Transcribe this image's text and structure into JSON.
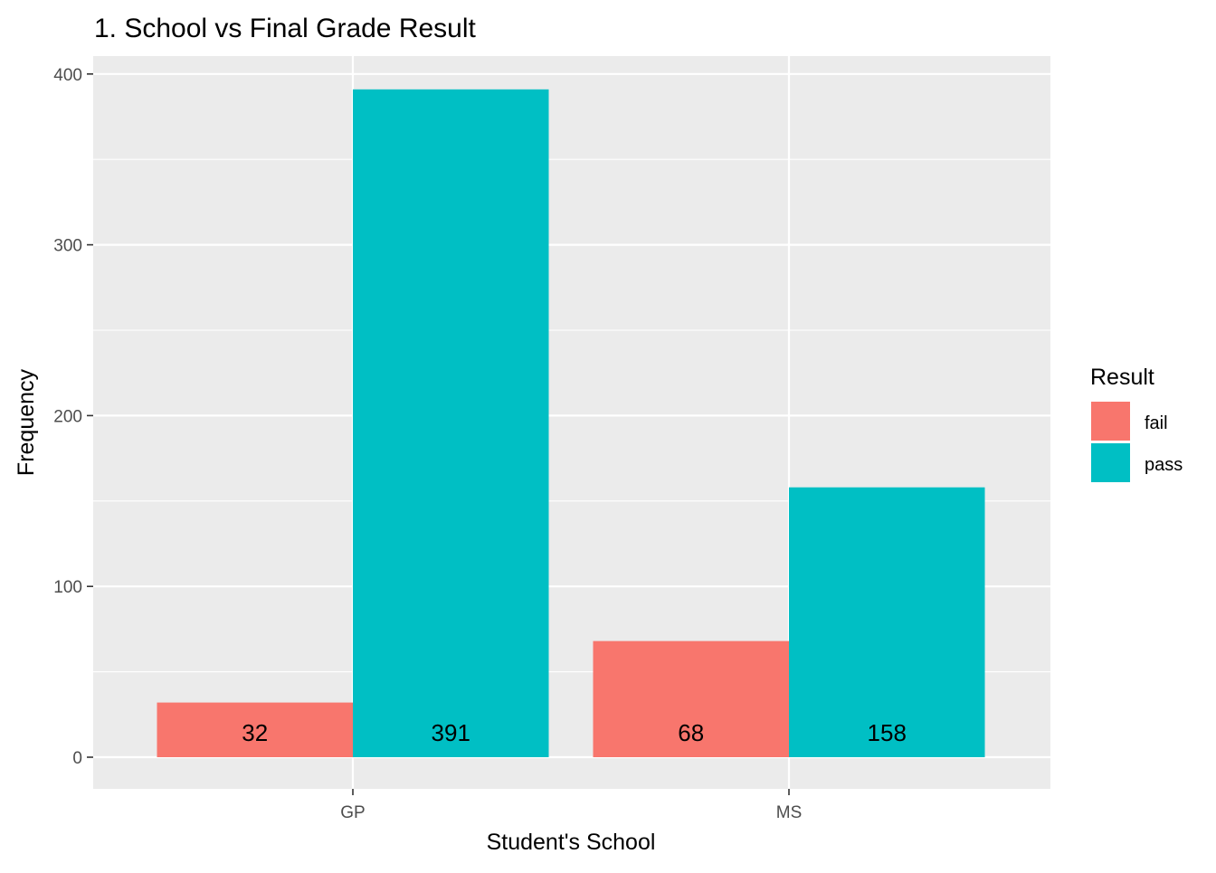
{
  "chart_data": {
    "type": "bar",
    "title": "1. School vs Final Grade Result",
    "xlabel": "Student's School",
    "ylabel": "Frequency",
    "categories": [
      "GP",
      "MS"
    ],
    "series": [
      {
        "name": "fail",
        "color": "#F8766D",
        "values": [
          32,
          68
        ]
      },
      {
        "name": "pass",
        "color": "#00BFC4",
        "values": [
          391,
          158
        ]
      }
    ],
    "ylim": [
      0,
      420
    ],
    "yticks": [
      0,
      100,
      200,
      300,
      400
    ],
    "grid": true,
    "legend": {
      "title": "Result",
      "position": "right"
    },
    "data_labels": true
  }
}
